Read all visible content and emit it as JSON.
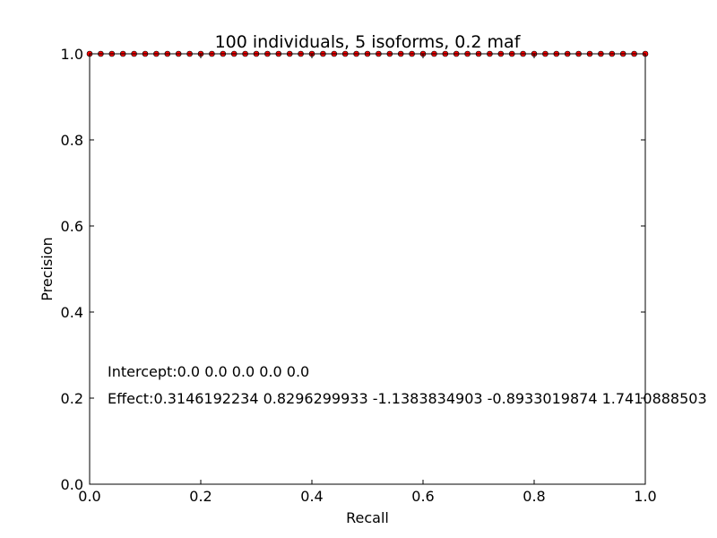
{
  "chart_data": {
    "type": "scatter",
    "title": "100 individuals, 5 isoforms, 0.2 maf",
    "xlabel": "Recall",
    "ylabel": "Precision",
    "xlim": [
      0.0,
      1.0
    ],
    "ylim": [
      0.0,
      1.0
    ],
    "xticks": [
      "0.0",
      "0.2",
      "0.4",
      "0.6",
      "0.8",
      "1.0"
    ],
    "yticks": [
      "0.0",
      "0.2",
      "0.4",
      "0.6",
      "0.8",
      "1.0"
    ],
    "grid": false,
    "marker_color": "#ff0000",
    "marker_edge_color": "#000000",
    "series": [
      {
        "x": [
          0.0,
          0.02,
          0.04,
          0.06,
          0.08,
          0.1,
          0.12,
          0.14,
          0.16,
          0.18,
          0.2,
          0.22,
          0.24,
          0.26,
          0.28,
          0.3,
          0.32,
          0.34,
          0.36,
          0.38,
          0.4,
          0.42,
          0.44,
          0.46,
          0.48,
          0.5,
          0.52,
          0.54,
          0.56,
          0.58,
          0.6,
          0.62,
          0.64,
          0.66,
          0.68,
          0.7,
          0.72,
          0.74,
          0.76,
          0.78,
          0.8,
          0.82,
          0.84,
          0.86,
          0.88,
          0.9,
          0.92,
          0.94,
          0.96,
          0.98,
          1.0
        ],
        "y": [
          1.0,
          1.0,
          1.0,
          1.0,
          1.0,
          1.0,
          1.0,
          1.0,
          1.0,
          1.0,
          1.0,
          1.0,
          1.0,
          1.0,
          1.0,
          1.0,
          1.0,
          1.0,
          1.0,
          1.0,
          1.0,
          1.0,
          1.0,
          1.0,
          1.0,
          1.0,
          1.0,
          1.0,
          1.0,
          1.0,
          1.0,
          1.0,
          1.0,
          1.0,
          1.0,
          1.0,
          1.0,
          1.0,
          1.0,
          1.0,
          1.0,
          1.0,
          1.0,
          1.0,
          1.0,
          1.0,
          1.0,
          1.0,
          1.0,
          1.0,
          1.0
        ]
      }
    ],
    "annotations": [
      "Intercept:0.0 0.0 0.0 0.0 0.0",
      "Effect:0.3146192234 0.8296299933 -1.1383834903 -0.8933019874 1.7410888503"
    ]
  }
}
